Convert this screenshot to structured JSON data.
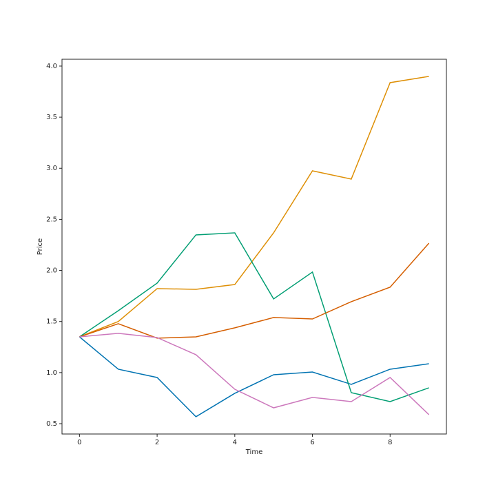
{
  "chart_data": {
    "type": "line",
    "x_label": "Time",
    "y_label": "Price",
    "x": [
      0,
      1,
      2,
      3,
      4,
      5,
      6,
      7,
      8,
      9
    ],
    "series": [
      {
        "color": "#0173b2",
        "values": [
          1.35,
          1.033,
          0.952,
          0.568,
          0.797,
          0.979,
          1.006,
          0.885,
          1.033,
          1.087
        ]
      },
      {
        "color": "#de8f05",
        "values": [
          1.35,
          1.5,
          1.822,
          1.815,
          1.862,
          2.368,
          2.975,
          2.894,
          3.838,
          3.899
        ]
      },
      {
        "color": "#029e73",
        "values": [
          1.35,
          1.606,
          1.876,
          2.348,
          2.368,
          1.721,
          1.984,
          0.804,
          0.716,
          0.851
        ]
      },
      {
        "color": "#d55e00",
        "values": [
          1.35,
          1.478,
          1.337,
          1.35,
          1.438,
          1.539,
          1.525,
          1.694,
          1.836,
          2.267
        ]
      },
      {
        "color": "#cc78bc",
        "values": [
          1.35,
          1.384,
          1.343,
          1.175,
          0.837,
          0.655,
          0.757,
          0.716,
          0.952,
          0.588
        ]
      }
    ],
    "xlim": [
      -0.45,
      9.45
    ],
    "xticks": [
      0,
      2,
      4,
      6,
      8
    ],
    "ylim": [
      0.399,
      4.067
    ],
    "yticks": [
      {
        "value": 0.5,
        "label": "0.5"
      },
      {
        "value": 1.0,
        "label": "1.0"
      },
      {
        "value": 1.5,
        "label": "1.5"
      },
      {
        "value": 2.0,
        "label": "2.0"
      },
      {
        "value": 2.5,
        "label": "2.5"
      },
      {
        "value": 3.0,
        "label": "3.0"
      },
      {
        "value": 3.5,
        "label": "3.5"
      },
      {
        "value": 4.0,
        "label": "4.0"
      }
    ],
    "grid": false
  }
}
